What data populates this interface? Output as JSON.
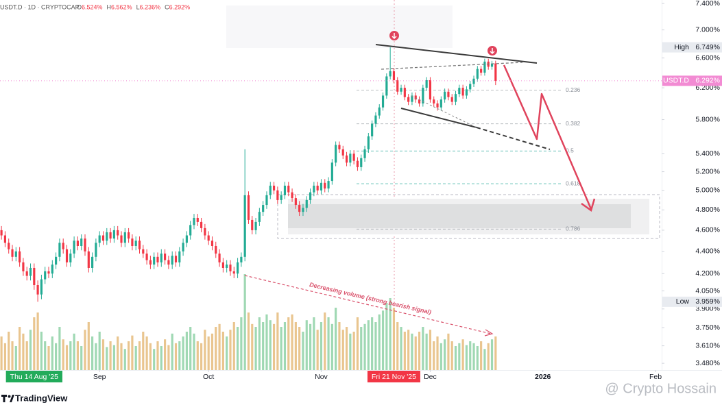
{
  "chart_data": {
    "type": "candlestick",
    "header": {
      "symbol": "USDT.D · 1D · CRYPTOCAP",
      "ohlc": [
        {
          "key": "O",
          "value": 6.524,
          "label": "6.524%"
        },
        {
          "key": "H",
          "value": 6.562,
          "label": "6.562%"
        },
        {
          "key": "L",
          "value": 6.236,
          "label": "6.236%"
        },
        {
          "key": "C",
          "value": 6.292,
          "label": "6.292%"
        }
      ]
    },
    "log_scale": true,
    "up_color": "#22ab94",
    "down_color": "#f23645",
    "volume_up_color": "#9fd8b3",
    "volume_down_color": "#e9c58f",
    "ylim": [
      3.431,
      7.453
    ],
    "yticks": [
      {
        "value": 7.4,
        "label": "7.400%"
      },
      {
        "value": 7.0,
        "label": "7.000%"
      },
      {
        "value": 6.6,
        "label": "6.600%"
      },
      {
        "value": 6.2,
        "label": "6.200%"
      },
      {
        "value": 5.8,
        "label": "5.800%"
      },
      {
        "value": 5.4,
        "label": "5.400%"
      },
      {
        "value": 5.2,
        "label": "5.200%"
      },
      {
        "value": 5.0,
        "label": "5.000%"
      },
      {
        "value": 4.8,
        "label": "4.800%"
      },
      {
        "value": 4.6,
        "label": "4.600%"
      },
      {
        "value": 4.4,
        "label": "4.400%"
      },
      {
        "value": 4.2,
        "label": "4.200%"
      },
      {
        "value": 4.05,
        "label": "4.050%"
      },
      {
        "value": 3.9,
        "label": "3.900%"
      },
      {
        "value": 3.75,
        "label": "3.750%"
      },
      {
        "value": 3.61,
        "label": "3.610%"
      },
      {
        "value": 3.48,
        "label": "3.480%"
      }
    ],
    "xlim": [
      3.6,
      185.7
    ],
    "xticks": [
      {
        "value": 13,
        "label": "Thu 14 Aug '25",
        "color": "#22ab5a"
      },
      {
        "value": 31,
        "label": "Sep"
      },
      {
        "value": 61,
        "label": "Oct"
      },
      {
        "value": 92,
        "label": "Nov"
      },
      {
        "value": 112,
        "label": "Fri 21 Nov '25",
        "color": "#f23645"
      },
      {
        "value": 122,
        "label": "Dec"
      },
      {
        "value": 153,
        "label": "2026"
      },
      {
        "value": 184,
        "label": "Feb"
      }
    ],
    "price_markers": [
      {
        "name": "High",
        "value": 6.749,
        "label": "6.749%",
        "color": "#e8ebf0",
        "text_color": "#131722"
      },
      {
        "name": "USDT.D",
        "value": 6.292,
        "label": "6.292%",
        "color": "#f28bd3",
        "text_color": "#ffffff"
      },
      {
        "name": "Low",
        "value": 3.959,
        "label": "3.959%",
        "color": "#e8ebf0",
        "text_color": "#131722"
      }
    ],
    "fib_levels": [
      {
        "ratio": 0.236,
        "value": 6.17
      },
      {
        "ratio": 0.382,
        "value": 5.75
      },
      {
        "ratio": 0.5,
        "value": 5.43
      },
      {
        "ratio": 0.618,
        "value": 5.07
      },
      {
        "ratio": 0.786,
        "value": 4.61
      }
    ],
    "annotation": "Decreasing volume (strong bearish signal)",
    "watermark": "@ Crypto Hossain",
    "brand": "TradingView",
    "x": [
      4,
      5,
      6,
      7,
      8,
      9,
      10,
      11,
      12,
      13,
      14,
      15,
      16,
      17,
      18,
      19,
      20,
      21,
      22,
      23,
      24,
      25,
      26,
      27,
      28,
      29,
      30,
      31,
      32,
      33,
      34,
      35,
      36,
      37,
      38,
      39,
      40,
      41,
      42,
      43,
      44,
      45,
      46,
      47,
      48,
      49,
      50,
      51,
      52,
      53,
      54,
      55,
      56,
      57,
      58,
      59,
      60,
      61,
      62,
      63,
      64,
      65,
      66,
      67,
      68,
      69,
      70,
      71,
      72,
      73,
      74,
      75,
      76,
      77,
      78,
      79,
      80,
      81,
      82,
      83,
      84,
      85,
      86,
      87,
      88,
      89,
      90,
      91,
      92,
      93,
      94,
      95,
      96,
      97,
      98,
      99,
      100,
      101,
      102,
      103,
      104,
      105,
      106,
      107,
      108,
      109,
      110,
      111,
      112,
      113,
      114,
      115,
      116,
      117,
      118,
      119,
      120,
      121,
      122,
      123,
      124,
      125,
      126,
      127,
      128,
      129,
      130,
      131,
      132,
      133,
      134,
      135,
      136,
      137,
      138,
      139,
      140
    ],
    "candles": [
      [
        4.6,
        4.64,
        4.51,
        4.55
      ],
      [
        4.55,
        4.59,
        4.44,
        4.48
      ],
      [
        4.48,
        4.52,
        4.38,
        4.42
      ],
      [
        4.42,
        4.46,
        4.31,
        4.35
      ],
      [
        4.35,
        4.44,
        4.31,
        4.4
      ],
      [
        4.4,
        4.44,
        4.26,
        4.3
      ],
      [
        4.3,
        4.34,
        4.18,
        4.22
      ],
      [
        4.22,
        4.26,
        4.14,
        4.18
      ],
      [
        4.18,
        4.29,
        4.14,
        4.25
      ],
      [
        4.25,
        4.29,
        4.06,
        4.1
      ],
      [
        4.1,
        4.14,
        3.959,
        4.02
      ],
      [
        4.02,
        4.19,
        3.98,
        4.15
      ],
      [
        4.15,
        4.26,
        4.11,
        4.22
      ],
      [
        4.22,
        4.26,
        4.16,
        4.2
      ],
      [
        4.2,
        4.32,
        4.16,
        4.28
      ],
      [
        4.28,
        4.39,
        4.24,
        4.35
      ],
      [
        4.35,
        4.52,
        4.31,
        4.48
      ],
      [
        4.48,
        4.52,
        4.38,
        4.42
      ],
      [
        4.42,
        4.46,
        4.26,
        4.3
      ],
      [
        4.3,
        4.42,
        4.26,
        4.38
      ],
      [
        4.38,
        4.54,
        4.34,
        4.5
      ],
      [
        4.5,
        4.54,
        4.41,
        4.45
      ],
      [
        4.45,
        4.56,
        4.41,
        4.52
      ],
      [
        4.52,
        4.56,
        4.36,
        4.4
      ],
      [
        4.4,
        4.44,
        4.21,
        4.25
      ],
      [
        4.25,
        4.39,
        4.21,
        4.35
      ],
      [
        4.35,
        4.52,
        4.31,
        4.48
      ],
      [
        4.48,
        4.59,
        4.44,
        4.55
      ],
      [
        4.55,
        4.59,
        4.46,
        4.5
      ],
      [
        4.5,
        4.62,
        4.46,
        4.58
      ],
      [
        4.58,
        4.62,
        4.48,
        4.52
      ],
      [
        4.52,
        4.64,
        4.48,
        4.6
      ],
      [
        4.6,
        4.64,
        4.51,
        4.55
      ],
      [
        4.55,
        4.59,
        4.44,
        4.48
      ],
      [
        4.48,
        4.62,
        4.44,
        4.58
      ],
      [
        4.58,
        4.62,
        4.48,
        4.52
      ],
      [
        4.52,
        4.56,
        4.41,
        4.45
      ],
      [
        4.45,
        4.54,
        4.41,
        4.5
      ],
      [
        4.5,
        4.54,
        4.38,
        4.42
      ],
      [
        4.42,
        4.46,
        4.34,
        4.38
      ],
      [
        4.38,
        4.42,
        4.28,
        4.32
      ],
      [
        4.32,
        4.36,
        4.24,
        4.28
      ],
      [
        4.28,
        4.39,
        4.24,
        4.35
      ],
      [
        4.35,
        4.39,
        4.26,
        4.3
      ],
      [
        4.3,
        4.42,
        4.26,
        4.38
      ],
      [
        4.38,
        4.42,
        4.28,
        4.32
      ],
      [
        4.32,
        4.36,
        4.24,
        4.28
      ],
      [
        4.28,
        4.4,
        4.24,
        4.36
      ],
      [
        4.36,
        4.4,
        4.26,
        4.3
      ],
      [
        4.3,
        4.44,
        4.26,
        4.4
      ],
      [
        4.4,
        4.52,
        4.36,
        4.48
      ],
      [
        4.48,
        4.59,
        4.44,
        4.55
      ],
      [
        4.55,
        4.69,
        4.51,
        4.65
      ],
      [
        4.65,
        4.76,
        4.61,
        4.72
      ],
      [
        4.72,
        4.76,
        4.64,
        4.68
      ],
      [
        4.68,
        4.72,
        4.58,
        4.62
      ],
      [
        4.62,
        4.66,
        4.51,
        4.55
      ],
      [
        4.55,
        4.59,
        4.46,
        4.5
      ],
      [
        4.5,
        4.54,
        4.41,
        4.45
      ],
      [
        4.45,
        4.49,
        4.34,
        4.38
      ],
      [
        4.38,
        4.42,
        4.26,
        4.3
      ],
      [
        4.3,
        4.34,
        4.21,
        4.25
      ],
      [
        4.25,
        4.32,
        4.21,
        4.28
      ],
      [
        4.28,
        4.32,
        4.18,
        4.22
      ],
      [
        4.22,
        4.26,
        4.16,
        4.2
      ],
      [
        4.2,
        4.34,
        4.16,
        4.3
      ],
      [
        4.3,
        4.39,
        4.26,
        4.35
      ],
      [
        4.35,
        5.45,
        4.31,
        4.95
      ],
      [
        4.95,
        4.99,
        4.66,
        4.7
      ],
      [
        4.7,
        4.74,
        4.56,
        4.6
      ],
      [
        4.6,
        4.72,
        4.56,
        4.68
      ],
      [
        4.68,
        4.82,
        4.64,
        4.78
      ],
      [
        4.78,
        4.89,
        4.74,
        4.85
      ],
      [
        4.85,
        4.99,
        4.81,
        4.95
      ],
      [
        4.95,
        5.09,
        4.91,
        5.05
      ],
      [
        5.05,
        5.09,
        4.96,
        5.0
      ],
      [
        5.0,
        5.04,
        4.86,
        4.9
      ],
      [
        4.9,
        4.99,
        4.86,
        4.95
      ],
      [
        4.95,
        5.09,
        4.91,
        5.05
      ],
      [
        5.05,
        5.09,
        4.94,
        4.98
      ],
      [
        4.98,
        5.02,
        4.88,
        4.92
      ],
      [
        4.92,
        4.96,
        4.81,
        4.85
      ],
      [
        4.85,
        4.89,
        4.74,
        4.78
      ],
      [
        4.78,
        4.86,
        4.74,
        4.82
      ],
      [
        4.82,
        4.94,
        4.78,
        4.9
      ],
      [
        4.9,
        5.02,
        4.86,
        4.98
      ],
      [
        4.98,
        5.09,
        4.94,
        5.05
      ],
      [
        5.05,
        5.09,
        4.96,
        5.0
      ],
      [
        5.0,
        5.12,
        4.96,
        5.08
      ],
      [
        5.08,
        5.12,
        4.98,
        5.02
      ],
      [
        5.02,
        5.14,
        4.98,
        5.1
      ],
      [
        5.1,
        5.34,
        5.06,
        5.3
      ],
      [
        5.3,
        5.54,
        5.26,
        5.5
      ],
      [
        5.5,
        5.54,
        5.41,
        5.45
      ],
      [
        5.45,
        5.49,
        5.34,
        5.38
      ],
      [
        5.38,
        5.42,
        5.26,
        5.3
      ],
      [
        5.3,
        5.44,
        5.26,
        5.4
      ],
      [
        5.4,
        5.44,
        5.28,
        5.32
      ],
      [
        5.32,
        5.36,
        5.21,
        5.25
      ],
      [
        5.25,
        5.39,
        5.21,
        5.35
      ],
      [
        5.35,
        5.49,
        5.31,
        5.45
      ],
      [
        5.45,
        5.64,
        5.41,
        5.6
      ],
      [
        5.6,
        5.79,
        5.56,
        5.75
      ],
      [
        5.75,
        5.89,
        5.71,
        5.85
      ],
      [
        5.85,
        5.99,
        5.81,
        5.95
      ],
      [
        5.95,
        6.14,
        5.91,
        6.1
      ],
      [
        6.1,
        6.39,
        6.06,
        6.35
      ],
      [
        6.35,
        6.749,
        6.31,
        6.42
      ],
      [
        6.42,
        6.46,
        6.26,
        6.3
      ],
      [
        6.3,
        6.34,
        6.11,
        6.15
      ],
      [
        6.15,
        6.24,
        6.11,
        6.2
      ],
      [
        6.2,
        6.24,
        6.04,
        6.08
      ],
      [
        6.08,
        6.12,
        5.98,
        6.02
      ],
      [
        6.02,
        6.14,
        5.98,
        6.1
      ],
      [
        6.1,
        6.14,
        6.01,
        6.05
      ],
      [
        6.05,
        6.09,
        5.96,
        6.0
      ],
      [
        6.0,
        6.24,
        5.96,
        6.2
      ],
      [
        6.2,
        6.34,
        6.16,
        6.3
      ],
      [
        6.3,
        6.34,
        6.01,
        6.05
      ],
      [
        6.05,
        6.09,
        5.96,
        6.0
      ],
      [
        6.0,
        6.04,
        5.91,
        5.95
      ],
      [
        5.95,
        6.09,
        5.91,
        6.05
      ],
      [
        6.05,
        6.19,
        6.01,
        6.15
      ],
      [
        6.15,
        6.19,
        6.04,
        6.08
      ],
      [
        6.08,
        6.12,
        5.98,
        6.02
      ],
      [
        6.02,
        6.16,
        5.98,
        6.12
      ],
      [
        6.12,
        6.24,
        6.08,
        6.2
      ],
      [
        6.2,
        6.24,
        6.06,
        6.1
      ],
      [
        6.1,
        6.22,
        6.06,
        6.18
      ],
      [
        6.18,
        6.29,
        6.14,
        6.25
      ],
      [
        6.25,
        6.36,
        6.21,
        6.32
      ],
      [
        6.32,
        6.49,
        6.28,
        6.45
      ],
      [
        6.45,
        6.49,
        6.36,
        6.4
      ],
      [
        6.4,
        6.59,
        6.36,
        6.55
      ],
      [
        6.55,
        6.59,
        6.44,
        6.48
      ],
      [
        6.48,
        6.56,
        6.44,
        6.524
      ],
      [
        6.524,
        6.562,
        6.236,
        6.292
      ]
    ],
    "volume": [
      35,
      28,
      40,
      30,
      25,
      45,
      38,
      30,
      42,
      55,
      60,
      40,
      30,
      25,
      35,
      28,
      45,
      32,
      26,
      30,
      38,
      30,
      25,
      42,
      50,
      35,
      28,
      40,
      32,
      24,
      30,
      26,
      35,
      28,
      22,
      30,
      36,
      25,
      30,
      40,
      35,
      28,
      22,
      30,
      25,
      32,
      26,
      38,
      28,
      30,
      35,
      40,
      45,
      38,
      30,
      28,
      42,
      35,
      38,
      45,
      48,
      40,
      35,
      42,
      50,
      45,
      55,
      100,
      60,
      48,
      45,
      55,
      50,
      58,
      52,
      48,
      60,
      45,
      50,
      55,
      58,
      50,
      45,
      40,
      52,
      48,
      55,
      42,
      50,
      60,
      55,
      48,
      65,
      50,
      42,
      45,
      38,
      40,
      55,
      45,
      48,
      52,
      55,
      50,
      58,
      62,
      70,
      75,
      65,
      50,
      45,
      40,
      42,
      38,
      35,
      40,
      45,
      38,
      42,
      30,
      35,
      28,
      32,
      38,
      30,
      25,
      28,
      32,
      26,
      30,
      28,
      25,
      30,
      22,
      28,
      32,
      35
    ]
  }
}
